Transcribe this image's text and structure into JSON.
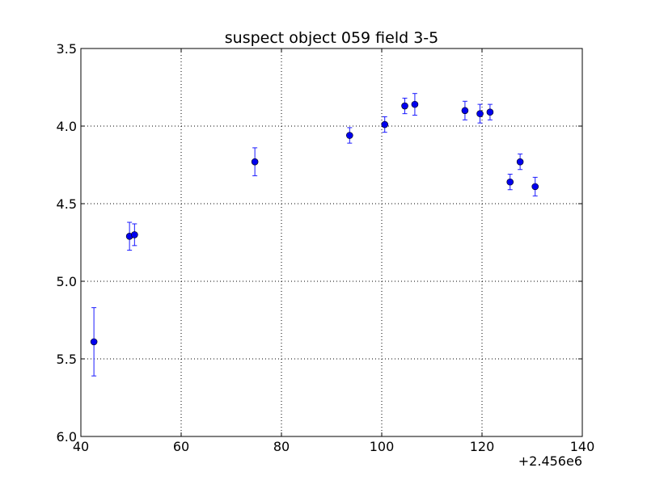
{
  "chart_data": {
    "type": "scatter",
    "title": "suspect object 059 field 3-5",
    "xlabel": "",
    "ylabel": "",
    "x_offset_label": "+2.456e6",
    "xlim": [
      40,
      140
    ],
    "ylim": [
      6.0,
      3.5
    ],
    "y_inverted": true,
    "grid": true,
    "legend": "none",
    "x_ticks": [
      40,
      60,
      80,
      100,
      120,
      140
    ],
    "x_tick_labels": [
      "40",
      "60",
      "80",
      "100",
      "120",
      "140"
    ],
    "y_ticks": [
      3.5,
      4.0,
      4.5,
      5.0,
      5.5,
      6.0
    ],
    "y_tick_labels": [
      "3.5",
      "4.0",
      "4.5",
      "5.0",
      "5.5",
      "6.0"
    ],
    "colors": {
      "marker": "#0000ee",
      "errorbar": "#1a1aff",
      "grid": "#000000",
      "axes": "#000000"
    },
    "points": [
      {
        "x": 42.6,
        "y": 5.39,
        "err": 0.22
      },
      {
        "x": 49.7,
        "y": 4.71,
        "err": 0.09
      },
      {
        "x": 50.7,
        "y": 4.7,
        "err": 0.07
      },
      {
        "x": 74.7,
        "y": 4.23,
        "err": 0.09
      },
      {
        "x": 93.6,
        "y": 4.06,
        "err": 0.05
      },
      {
        "x": 100.6,
        "y": 3.99,
        "err": 0.05
      },
      {
        "x": 104.6,
        "y": 3.87,
        "err": 0.05
      },
      {
        "x": 106.6,
        "y": 3.86,
        "err": 0.07
      },
      {
        "x": 116.6,
        "y": 3.9,
        "err": 0.06
      },
      {
        "x": 119.6,
        "y": 3.92,
        "err": 0.06
      },
      {
        "x": 121.6,
        "y": 3.91,
        "err": 0.05
      },
      {
        "x": 125.6,
        "y": 4.36,
        "err": 0.05
      },
      {
        "x": 127.6,
        "y": 4.23,
        "err": 0.05
      },
      {
        "x": 130.6,
        "y": 4.39,
        "err": 0.06
      }
    ]
  }
}
